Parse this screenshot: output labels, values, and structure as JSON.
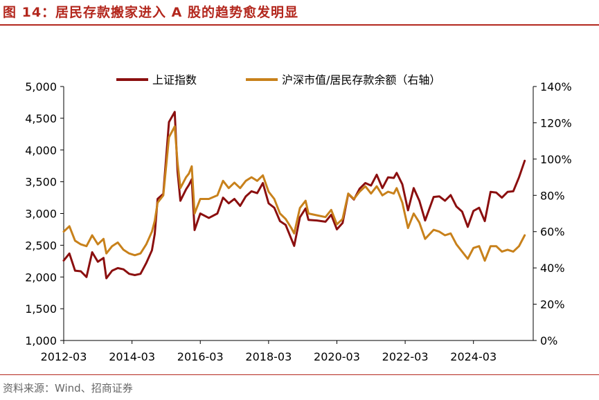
{
  "figure_title": "图 14：居民存款搬家进入 A 股的趋势愈发明显",
  "source": "资料来源：Wind、招商证券",
  "colors": {
    "title": "#b3271d",
    "series_index": "#8b0f0f",
    "series_ratio": "#c8811b",
    "axis": "#000000",
    "source_text": "#666666"
  },
  "chart_data": {
    "type": "line",
    "legend_position": "top",
    "grid": false,
    "x_range": [
      "2012-03",
      "2025-12"
    ],
    "x_ticks": [
      "2012-03",
      "2014-03",
      "2016-03",
      "2018-03",
      "2020-03",
      "2022-03",
      "2024-03"
    ],
    "y_left": {
      "range": [
        1000,
        5000
      ],
      "ticks": [
        "5,000",
        "4,500",
        "4,000",
        "3,500",
        "3,000",
        "2,500",
        "2,000",
        "1,500",
        "1,000"
      ]
    },
    "y_right": {
      "range": [
        0,
        140
      ],
      "unit": "%",
      "ticks": [
        "140%",
        "120%",
        "100%",
        "80%",
        "60%",
        "40%",
        "20%",
        "0%"
      ]
    },
    "series": [
      {
        "name": "上证指数",
        "axis": "left",
        "points": [
          [
            "2012-03",
            2260
          ],
          [
            "2012-05",
            2370
          ],
          [
            "2012-07",
            2100
          ],
          [
            "2012-09",
            2090
          ],
          [
            "2012-11",
            2000
          ],
          [
            "2013-01",
            2390
          ],
          [
            "2013-03",
            2240
          ],
          [
            "2013-05",
            2300
          ],
          [
            "2013-06",
            1980
          ],
          [
            "2013-08",
            2100
          ],
          [
            "2013-10",
            2140
          ],
          [
            "2013-12",
            2120
          ],
          [
            "2014-02",
            2050
          ],
          [
            "2014-04",
            2030
          ],
          [
            "2014-06",
            2050
          ],
          [
            "2014-08",
            2220
          ],
          [
            "2014-10",
            2420
          ],
          [
            "2014-11",
            2680
          ],
          [
            "2014-12",
            3230
          ],
          [
            "2015-02",
            3310
          ],
          [
            "2015-04",
            4440
          ],
          [
            "2015-06",
            4600
          ],
          [
            "2015-07",
            3660
          ],
          [
            "2015-08",
            3200
          ],
          [
            "2015-10",
            3380
          ],
          [
            "2015-11",
            3450
          ],
          [
            "2015-12",
            3540
          ],
          [
            "2016-01",
            2740
          ],
          [
            "2016-03",
            3000
          ],
          [
            "2016-06",
            2930
          ],
          [
            "2016-09",
            3000
          ],
          [
            "2016-11",
            3250
          ],
          [
            "2017-01",
            3160
          ],
          [
            "2017-03",
            3230
          ],
          [
            "2017-05",
            3120
          ],
          [
            "2017-07",
            3270
          ],
          [
            "2017-09",
            3350
          ],
          [
            "2017-11",
            3320
          ],
          [
            "2018-01",
            3480
          ],
          [
            "2018-03",
            3160
          ],
          [
            "2018-05",
            3090
          ],
          [
            "2018-07",
            2880
          ],
          [
            "2018-09",
            2820
          ],
          [
            "2018-11",
            2600
          ],
          [
            "2018-12",
            2490
          ],
          [
            "2019-02",
            2940
          ],
          [
            "2019-04",
            3080
          ],
          [
            "2019-05",
            2900
          ],
          [
            "2019-08",
            2890
          ],
          [
            "2019-11",
            2870
          ],
          [
            "2020-01",
            2980
          ],
          [
            "2020-03",
            2750
          ],
          [
            "2020-05",
            2850
          ],
          [
            "2020-07",
            3310
          ],
          [
            "2020-09",
            3220
          ],
          [
            "2020-11",
            3390
          ],
          [
            "2021-01",
            3480
          ],
          [
            "2021-03",
            3440
          ],
          [
            "2021-05",
            3610
          ],
          [
            "2021-07",
            3400
          ],
          [
            "2021-09",
            3570
          ],
          [
            "2021-11",
            3560
          ],
          [
            "2021-12",
            3640
          ],
          [
            "2022-02",
            3460
          ],
          [
            "2022-04",
            3050
          ],
          [
            "2022-06",
            3400
          ],
          [
            "2022-08",
            3200
          ],
          [
            "2022-10",
            2890
          ],
          [
            "2023-01",
            3260
          ],
          [
            "2023-03",
            3270
          ],
          [
            "2023-05",
            3200
          ],
          [
            "2023-07",
            3290
          ],
          [
            "2023-09",
            3110
          ],
          [
            "2023-11",
            3030
          ],
          [
            "2024-01",
            2790
          ],
          [
            "2024-03",
            3040
          ],
          [
            "2024-05",
            3090
          ],
          [
            "2024-07",
            2880
          ],
          [
            "2024-09",
            3340
          ],
          [
            "2024-11",
            3330
          ],
          [
            "2025-01",
            3250
          ],
          [
            "2025-03",
            3340
          ],
          [
            "2025-05",
            3350
          ],
          [
            "2025-07",
            3570
          ],
          [
            "2025-09",
            3830
          ]
        ]
      },
      {
        "name": "沪深市值/居民存款余额（右轴）",
        "axis": "right",
        "points": [
          [
            "2012-03",
            60
          ],
          [
            "2012-05",
            63
          ],
          [
            "2012-07",
            55
          ],
          [
            "2012-09",
            53
          ],
          [
            "2012-11",
            52
          ],
          [
            "2013-01",
            58
          ],
          [
            "2013-03",
            53
          ],
          [
            "2013-05",
            56
          ],
          [
            "2013-06",
            48
          ],
          [
            "2013-08",
            52
          ],
          [
            "2013-10",
            54
          ],
          [
            "2013-12",
            50
          ],
          [
            "2014-02",
            48
          ],
          [
            "2014-04",
            47
          ],
          [
            "2014-06",
            48
          ],
          [
            "2014-08",
            53
          ],
          [
            "2014-10",
            60
          ],
          [
            "2014-11",
            66
          ],
          [
            "2014-12",
            76
          ],
          [
            "2015-02",
            80
          ],
          [
            "2015-04",
            112
          ],
          [
            "2015-06",
            118
          ],
          [
            "2015-07",
            98
          ],
          [
            "2015-08",
            84
          ],
          [
            "2015-10",
            90
          ],
          [
            "2015-11",
            92
          ],
          [
            "2015-12",
            96
          ],
          [
            "2016-01",
            70
          ],
          [
            "2016-03",
            78
          ],
          [
            "2016-06",
            78
          ],
          [
            "2016-09",
            80
          ],
          [
            "2016-11",
            88
          ],
          [
            "2017-01",
            84
          ],
          [
            "2017-03",
            87
          ],
          [
            "2017-05",
            84
          ],
          [
            "2017-07",
            88
          ],
          [
            "2017-09",
            90
          ],
          [
            "2017-11",
            88
          ],
          [
            "2018-01",
            91
          ],
          [
            "2018-03",
            82
          ],
          [
            "2018-05",
            78
          ],
          [
            "2018-07",
            70
          ],
          [
            "2018-09",
            67
          ],
          [
            "2018-11",
            62
          ],
          [
            "2018-12",
            59
          ],
          [
            "2019-02",
            73
          ],
          [
            "2019-04",
            77
          ],
          [
            "2019-05",
            70
          ],
          [
            "2019-08",
            69
          ],
          [
            "2019-11",
            68
          ],
          [
            "2020-01",
            72
          ],
          [
            "2020-03",
            64
          ],
          [
            "2020-05",
            67
          ],
          [
            "2020-07",
            81
          ],
          [
            "2020-09",
            78
          ],
          [
            "2020-11",
            82
          ],
          [
            "2021-01",
            85
          ],
          [
            "2021-03",
            81
          ],
          [
            "2021-05",
            85
          ],
          [
            "2021-07",
            80
          ],
          [
            "2021-09",
            82
          ],
          [
            "2021-11",
            81
          ],
          [
            "2021-12",
            84
          ],
          [
            "2022-02",
            76
          ],
          [
            "2022-04",
            62
          ],
          [
            "2022-06",
            70
          ],
          [
            "2022-08",
            65
          ],
          [
            "2022-10",
            56
          ],
          [
            "2023-01",
            61
          ],
          [
            "2023-03",
            60
          ],
          [
            "2023-05",
            58
          ],
          [
            "2023-07",
            59
          ],
          [
            "2023-09",
            53
          ],
          [
            "2023-11",
            49
          ],
          [
            "2024-01",
            45
          ],
          [
            "2024-03",
            51
          ],
          [
            "2024-05",
            52
          ],
          [
            "2024-07",
            44
          ],
          [
            "2024-09",
            52
          ],
          [
            "2024-11",
            52
          ],
          [
            "2025-01",
            49
          ],
          [
            "2025-03",
            50
          ],
          [
            "2025-05",
            49
          ],
          [
            "2025-07",
            52
          ],
          [
            "2025-09",
            58
          ]
        ]
      }
    ]
  }
}
